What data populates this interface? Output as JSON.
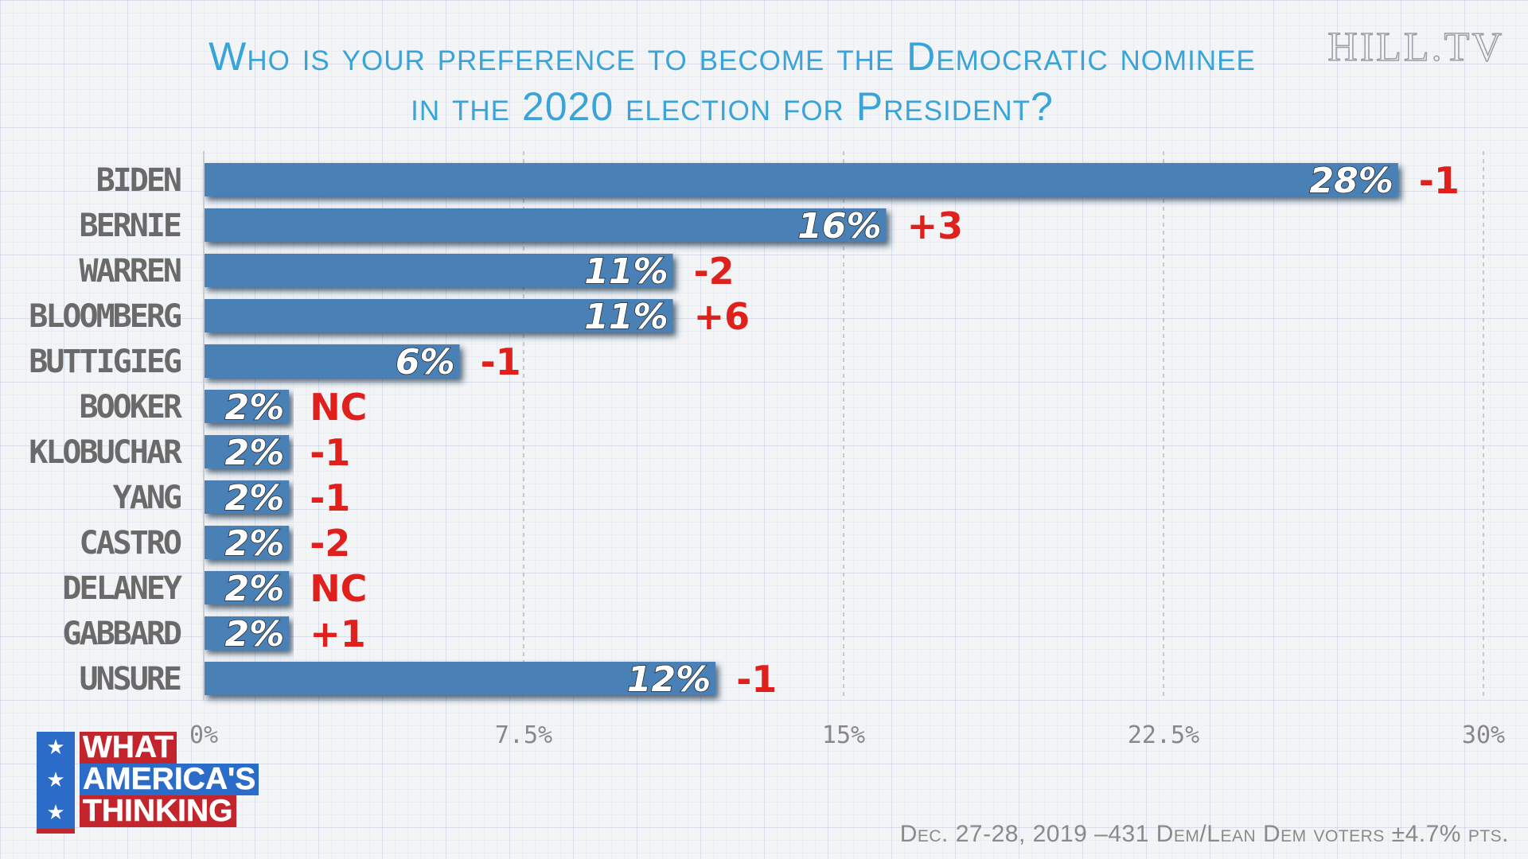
{
  "title": {
    "line1": "Who is your preference to become the Democratic nominee",
    "line2": "in the 2020 election for President?"
  },
  "watermark": "HILL.TV",
  "logo": {
    "line1": "WHAT",
    "line2": "AMERICA'S",
    "line3": "THINKING",
    "stars": [
      "★",
      "★",
      "★"
    ]
  },
  "footnote": "Dec. 27-28, 2019 –431 Dem/Lean Dem voters ±4.7% pts.",
  "colors": {
    "bar": "#4a81b6",
    "bar_shadow": "#1d3550",
    "title": "#3aa4d8",
    "change": "#e0201d",
    "category_label": "#6a6a6a"
  },
  "chart_data": {
    "type": "bar",
    "orientation": "horizontal",
    "categories": [
      "BIDEN",
      "BERNIE",
      "WARREN",
      "BLOOMBERG",
      "BUTTIGIEG",
      "BOOKER",
      "KLOBUCHAR",
      "YANG",
      "CASTRO",
      "DELANEY",
      "GABBARD",
      "UNSURE"
    ],
    "values": [
      28,
      16,
      11,
      11,
      6,
      2,
      2,
      2,
      2,
      2,
      2,
      12
    ],
    "value_labels": [
      "28%",
      "16%",
      "11%",
      "11%",
      "6%",
      "2%",
      "2%",
      "2%",
      "2%",
      "2%",
      "2%",
      "12%"
    ],
    "changes": [
      "-1",
      "+3",
      "-2",
      "+6",
      "-1",
      "NC",
      "-1",
      "-1",
      "-2",
      "NC",
      "+1",
      "-1"
    ],
    "xlim": [
      0,
      30
    ],
    "xticks": [
      0,
      7.5,
      15,
      22.5,
      30
    ],
    "xtick_labels": [
      "0%",
      "7.5%",
      "15%",
      "22.5%",
      "30%"
    ],
    "grid": "vertical dashed",
    "legend": "none"
  }
}
